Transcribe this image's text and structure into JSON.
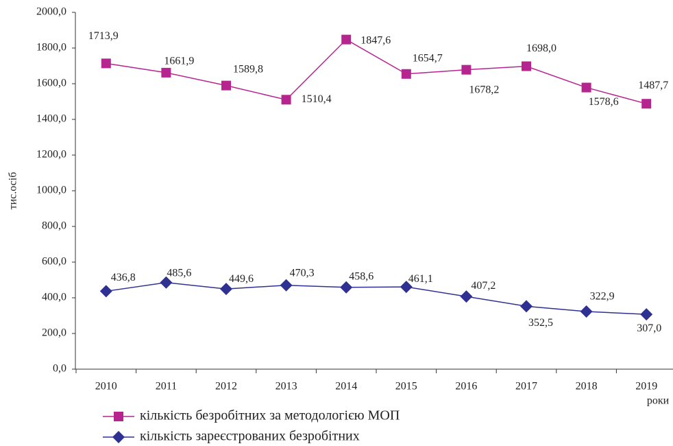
{
  "chart_data": {
    "type": "line",
    "y_label": "тис.осіб",
    "x_label": "роки",
    "categories": [
      "2010",
      "2011",
      "2012",
      "2013",
      "2014",
      "2015",
      "2016",
      "2017",
      "2018",
      "2019"
    ],
    "ylim": [
      0,
      2000
    ],
    "yticks": [
      {
        "value": 0,
        "label": "0,0"
      },
      {
        "value": 200,
        "label": "200,0"
      },
      {
        "value": 400,
        "label": "400,0"
      },
      {
        "value": 600,
        "label": "600,0"
      },
      {
        "value": 800,
        "label": "800,0"
      },
      {
        "value": 1000,
        "label": "1000,0"
      },
      {
        "value": 1200,
        "label": "1200,0"
      },
      {
        "value": 1400,
        "label": "1400,0"
      },
      {
        "value": 1600,
        "label": "1600,0"
      },
      {
        "value": 1800,
        "label": "1800,0"
      },
      {
        "value": 2000,
        "label": "2000,0"
      }
    ],
    "series": [
      {
        "name": "кількість безробітних за методологією МОП",
        "color": "#b5248f",
        "marker": "square",
        "values": [
          1713.9,
          1661.9,
          1589.8,
          1510.4,
          1847.6,
          1654.7,
          1678.2,
          1698.0,
          1578.6,
          1487.7
        ],
        "value_labels": [
          "1713,9",
          "1661,9",
          "1589,8",
          "1510,4",
          "1847,6",
          "1654,7",
          "1678,2",
          "1698,0",
          "1578,6",
          "1487,7"
        ]
      },
      {
        "name": "кількість зареєстрованих безробітних",
        "color": "#2e3192",
        "marker": "diamond",
        "values": [
          436.8,
          485.6,
          449.6,
          470.3,
          458.6,
          461.1,
          407.2,
          352.5,
          322.9,
          307.0
        ],
        "value_labels": [
          "436,8",
          "485,6",
          "449,6",
          "470,3",
          "458,6",
          "461,1",
          "407,2",
          "352,5",
          "322,9",
          "307,0"
        ]
      }
    ]
  }
}
